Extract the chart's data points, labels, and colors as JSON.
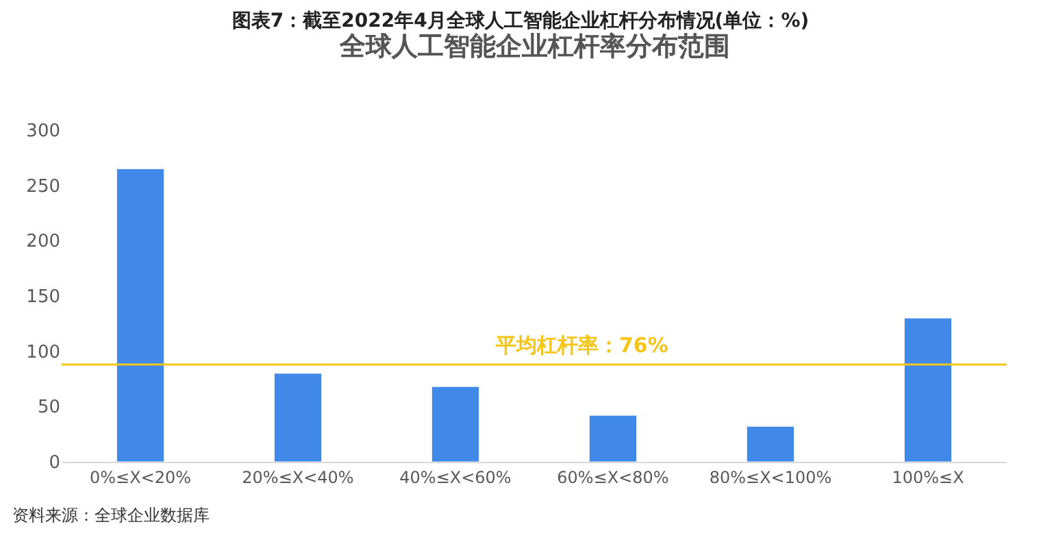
{
  "chart_data": {
    "type": "bar",
    "title": "图表7：截至2022年4月全球人工智能企业杠杆分布情况(单位：%)",
    "subtitle": "全球人工智能企业杠杆率分布范围",
    "categories": [
      "0%≤X<20%",
      "20%≤X<40%",
      "40%≤X<60%",
      "60%≤X<80%",
      "80%≤X<100%",
      "100%≤X"
    ],
    "values": [
      265,
      80,
      68,
      42,
      32,
      130
    ],
    "color": "#4189e8",
    "ylim": [
      0,
      300
    ],
    "yticks": [
      0,
      50,
      100,
      150,
      200,
      250,
      300
    ],
    "ref_lines": [
      {
        "axis": "y",
        "value": 88,
        "label": "平均杠杆率：76%",
        "color": "#f5c518"
      }
    ],
    "annotations": [
      "资料来源：全球企业数据库"
    ]
  }
}
